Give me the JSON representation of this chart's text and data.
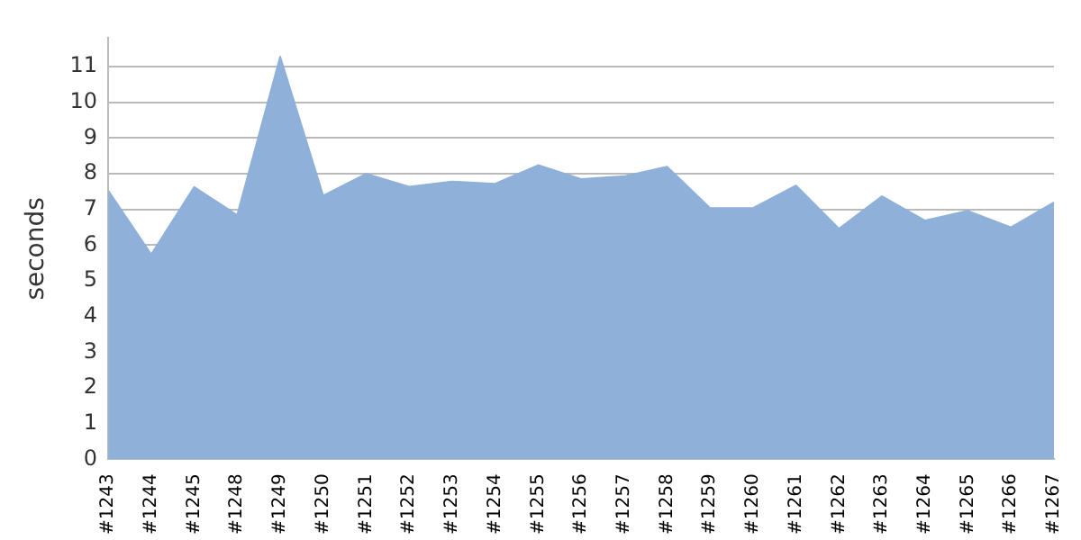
{
  "chart_data": {
    "type": "area",
    "ylabel": "seconds",
    "categories": [
      "#1243",
      "#1244",
      "#1245",
      "#1248",
      "#1249",
      "#1250",
      "#1251",
      "#1252",
      "#1253",
      "#1254",
      "#1255",
      "#1256",
      "#1257",
      "#1258",
      "#1259",
      "#1260",
      "#1261",
      "#1262",
      "#1263",
      "#1264",
      "#1265",
      "#1266",
      "#1267"
    ],
    "series": [
      {
        "color": "#8eb0d9",
        "values": [
          7.53,
          5.74,
          7.63,
          6.84,
          11.28,
          7.39,
          8.0,
          7.64,
          7.78,
          7.72,
          8.24,
          7.85,
          7.93,
          8.2,
          7.04,
          7.04,
          7.67,
          6.46,
          7.37,
          6.69,
          6.96,
          6.5,
          7.2
        ]
      }
    ],
    "ylim": [
      0,
      11.8
    ],
    "yticks": [
      0,
      1,
      2,
      3,
      4,
      5,
      6,
      7,
      8,
      9,
      10,
      11
    ],
    "grid": "y",
    "legend": false
  }
}
